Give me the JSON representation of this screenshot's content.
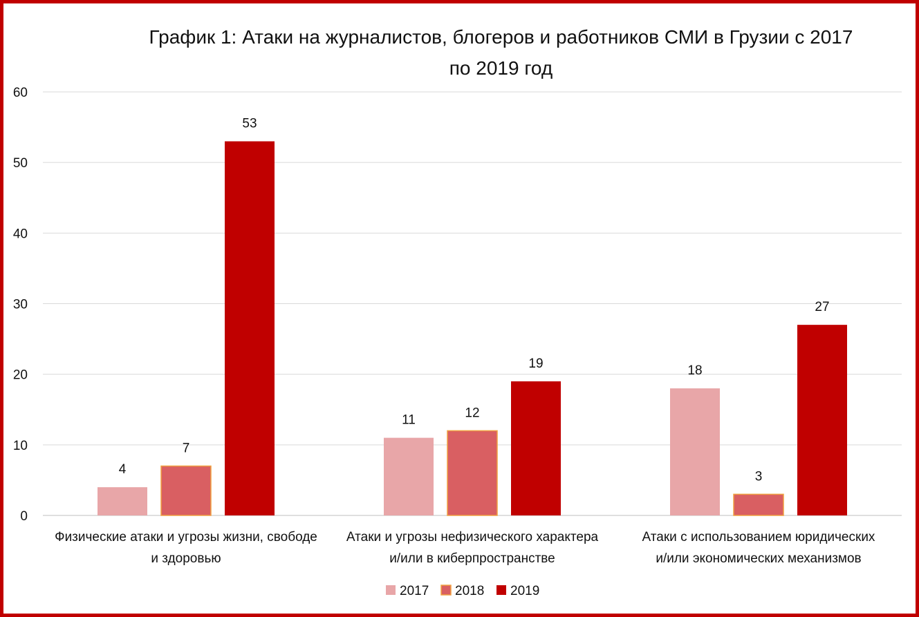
{
  "chart_data": {
    "type": "bar",
    "title_line1": "График 1: Атаки на журналистов, блогеров и работников СМИ в Грузии с 2017",
    "title_line2": "по 2019 год",
    "categories": [
      [
        "Физические атаки и угрозы жизни, свободе",
        "и здоровью"
      ],
      [
        "Атаки и угрозы нефизического характера",
        "и/или в киберпространстве"
      ],
      [
        "Атаки с использованием юридических",
        "и/или экономических механизмов"
      ]
    ],
    "series": [
      {
        "name": "2017",
        "values": [
          4,
          11,
          18
        ],
        "color": "#e8a6a8"
      },
      {
        "name": "2018",
        "values": [
          7,
          12,
          3
        ],
        "color": "#d95f62",
        "border": "#f0a040"
      },
      {
        "name": "2019",
        "values": [
          53,
          19,
          27
        ],
        "color": "#c00000"
      }
    ],
    "ylim": [
      0,
      60
    ],
    "yticks": [
      "0",
      "10",
      "20",
      "30",
      "40",
      "50",
      "60"
    ],
    "grid": true,
    "legend": "bottom",
    "border_color": "#c00000"
  }
}
